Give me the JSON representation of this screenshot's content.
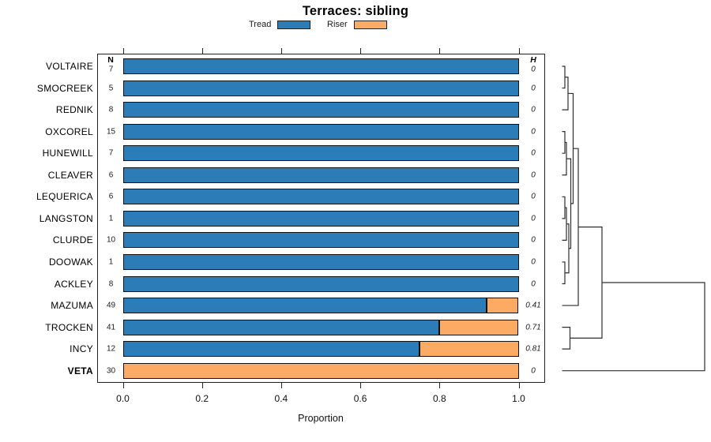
{
  "title": "Terraces: sibling",
  "legend": [
    {
      "label": "Tread",
      "color": "#2c7cb8"
    },
    {
      "label": "Riser",
      "color": "#fcab64"
    }
  ],
  "columns": {
    "n_header": "N",
    "h_header": "H"
  },
  "axis": {
    "xlabel": "Proportion",
    "tick_labels": [
      "0.0",
      "0.2",
      "0.4",
      "0.6",
      "0.8",
      "1.0"
    ],
    "tick_values": [
      0,
      0.2,
      0.4,
      0.6,
      0.8,
      1.0
    ]
  },
  "chart_data": {
    "type": "bar",
    "stacked": true,
    "orientation": "horizontal",
    "title": "Terraces: sibling",
    "xlabel": "Proportion",
    "xlim": [
      0,
      1
    ],
    "x_ticks": [
      0,
      0.2,
      0.4,
      0.6,
      0.8,
      1.0
    ],
    "series_names": [
      "Tread",
      "Riser"
    ],
    "series_colors": [
      "#2c7cb8",
      "#fcab64"
    ],
    "rows": [
      {
        "label": "VOLTAIRE",
        "n": 7,
        "tread": 1.0,
        "riser": 0.0,
        "h": "0",
        "bold": false
      },
      {
        "label": "SMOCREEK",
        "n": 5,
        "tread": 1.0,
        "riser": 0.0,
        "h": "0",
        "bold": false
      },
      {
        "label": "REDNIK",
        "n": 8,
        "tread": 1.0,
        "riser": 0.0,
        "h": "0",
        "bold": false
      },
      {
        "label": "OXCOREL",
        "n": 15,
        "tread": 1.0,
        "riser": 0.0,
        "h": "0",
        "bold": false
      },
      {
        "label": "HUNEWILL",
        "n": 7,
        "tread": 1.0,
        "riser": 0.0,
        "h": "0",
        "bold": false
      },
      {
        "label": "CLEAVER",
        "n": 6,
        "tread": 1.0,
        "riser": 0.0,
        "h": "0",
        "bold": false
      },
      {
        "label": "LEQUERICA",
        "n": 6,
        "tread": 1.0,
        "riser": 0.0,
        "h": "0",
        "bold": false
      },
      {
        "label": "LANGSTON",
        "n": 1,
        "tread": 1.0,
        "riser": 0.0,
        "h": "0",
        "bold": false
      },
      {
        "label": "CLURDE",
        "n": 10,
        "tread": 1.0,
        "riser": 0.0,
        "h": "0",
        "bold": false
      },
      {
        "label": "DOOWAK",
        "n": 1,
        "tread": 1.0,
        "riser": 0.0,
        "h": "0",
        "bold": false
      },
      {
        "label": "ACKLEY",
        "n": 8,
        "tread": 1.0,
        "riser": 0.0,
        "h": "0",
        "bold": false
      },
      {
        "label": "MAZUMA",
        "n": 49,
        "tread": 0.92,
        "riser": 0.08,
        "h": "0.41",
        "bold": false
      },
      {
        "label": "TROCKEN",
        "n": 41,
        "tread": 0.8,
        "riser": 0.2,
        "h": "0.71",
        "bold": false
      },
      {
        "label": "INCY",
        "n": 12,
        "tread": 0.75,
        "riser": 0.25,
        "h": "0.81",
        "bold": false
      },
      {
        "label": "VETA",
        "n": 30,
        "tread": 0.0,
        "riser": 1.0,
        "h": "0",
        "bold": true
      }
    ],
    "dendrogram": {
      "leaf_x": 711.5,
      "merges": [
        {
          "a": "L0",
          "b": "L1",
          "x": 715
        },
        {
          "a": "M0",
          "b": "L2",
          "x": 719
        },
        {
          "a": "L3",
          "b": "L4",
          "x": 715
        },
        {
          "a": "M2",
          "b": "L5",
          "x": 717
        },
        {
          "a": "L6",
          "b": "L7",
          "x": 715
        },
        {
          "a": "M4",
          "b": "L8",
          "x": 717
        },
        {
          "a": "L9",
          "b": "L10",
          "x": 715
        },
        {
          "a": "M5",
          "b": "M6",
          "x": 720
        },
        {
          "a": "M3",
          "b": "M7",
          "x": 722.5
        },
        {
          "a": "M1",
          "b": "M8",
          "x": 725.5
        },
        {
          "a": "M9",
          "b": "L11",
          "x": 732
        },
        {
          "a": "L12",
          "b": "L13",
          "x": 721.5
        },
        {
          "a": "M10",
          "b": "M11",
          "x": 762
        },
        {
          "a": "M12",
          "b": "L14",
          "x": 892
        }
      ]
    }
  }
}
